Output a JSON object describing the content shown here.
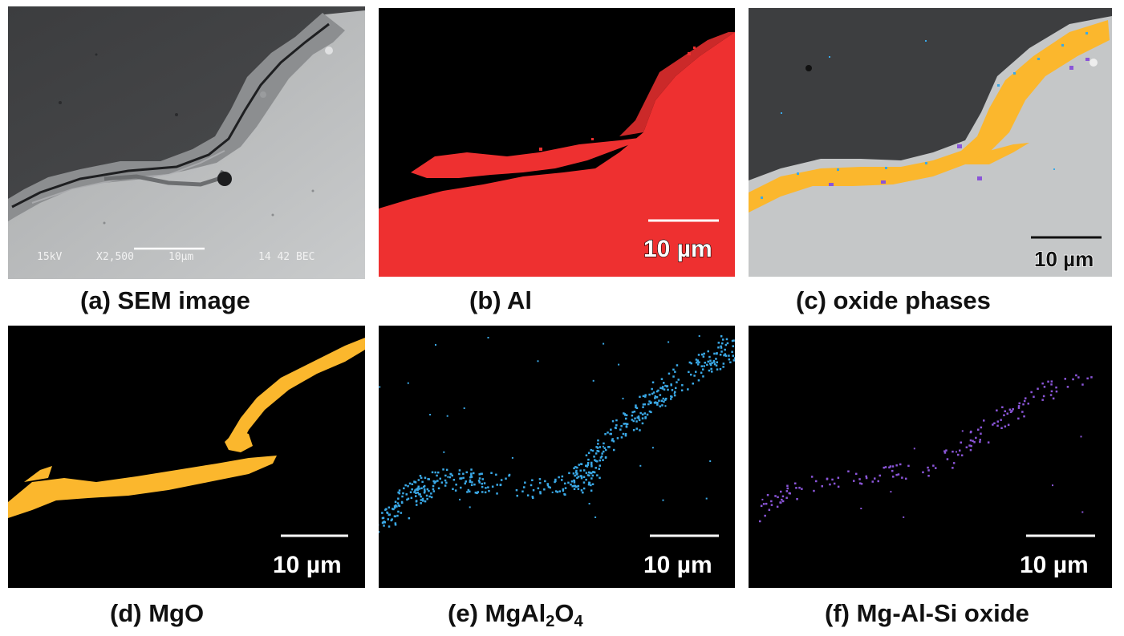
{
  "panels": [
    {
      "id": "a",
      "caption_prefix": "(a) ",
      "caption": "SEM image",
      "sem_info": {
        "kv": "15kV",
        "mag": "X2,500",
        "scale": "10µm",
        "code": "14 42 BEC"
      }
    },
    {
      "id": "b",
      "caption_prefix": "(b) ",
      "caption": "Al",
      "scale_label": "10 µm",
      "color": "#ee3030"
    },
    {
      "id": "c",
      "caption_prefix": "(c) ",
      "caption": "oxide phases",
      "scale_label": "10 µm"
    },
    {
      "id": "d",
      "caption_prefix": "(d) ",
      "caption": "MgO",
      "scale_label": "10 µm",
      "color": "#fbb72d"
    },
    {
      "id": "e",
      "caption_prefix": "(e) ",
      "caption_main": "MgAl",
      "sub1": "2",
      "mid": "O",
      "sub2": "4",
      "scale_label": "10 µm",
      "color": "#3aa8e6"
    },
    {
      "id": "f",
      "caption_prefix": "(f) ",
      "caption": "Mg-Al-Si oxide",
      "scale_label": "10 µm",
      "color": "#8a55d8"
    }
  ]
}
